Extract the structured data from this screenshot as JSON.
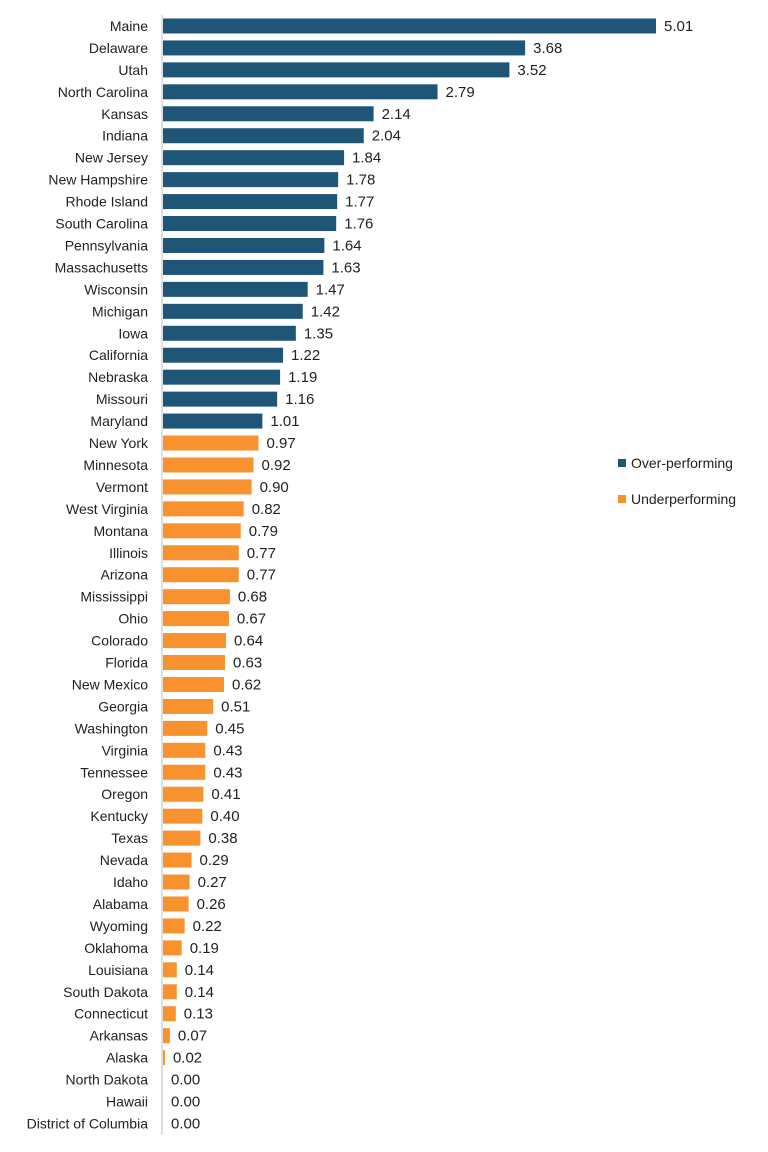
{
  "chart_data": {
    "type": "bar",
    "orientation": "horizontal",
    "title": "",
    "xlabel": "",
    "ylabel": "",
    "xlim": [
      0,
      5.4
    ],
    "grid": false,
    "legend_position": "right-middle",
    "categories": [
      "Maine",
      "Delaware",
      "Utah",
      "North Carolina",
      "Kansas",
      "Indiana",
      "New Jersey",
      "New Hampshire",
      "Rhode Island",
      "South Carolina",
      "Pennsylvania",
      "Massachusetts",
      "Wisconsin",
      "Michigan",
      "Iowa",
      "California",
      "Nebraska",
      "Missouri",
      "Maryland",
      "New York",
      "Minnesota",
      "Vermont",
      "West Virginia",
      "Montana",
      "Illinois",
      "Arizona",
      "Mississippi",
      "Ohio",
      "Colorado",
      "Florida",
      "New Mexico",
      "Georgia",
      "Washington",
      "Virginia",
      "Tennessee",
      "Oregon",
      "Kentucky",
      "Texas",
      "Nevada",
      "Idaho",
      "Alabama",
      "Wyoming",
      "Oklahoma",
      "Louisiana",
      "South Dakota",
      "Connecticut",
      "Arkansas",
      "Alaska",
      "North Dakota",
      "Hawaii",
      "District of Columbia"
    ],
    "values": [
      5.01,
      3.68,
      3.52,
      2.79,
      2.14,
      2.04,
      1.84,
      1.78,
      1.77,
      1.76,
      1.64,
      1.63,
      1.47,
      1.42,
      1.35,
      1.22,
      1.19,
      1.16,
      1.01,
      0.97,
      0.92,
      0.9,
      0.82,
      0.79,
      0.77,
      0.77,
      0.68,
      0.67,
      0.64,
      0.63,
      0.62,
      0.51,
      0.45,
      0.43,
      0.43,
      0.41,
      0.4,
      0.38,
      0.29,
      0.27,
      0.26,
      0.22,
      0.19,
      0.14,
      0.14,
      0.13,
      0.07,
      0.02,
      0.0,
      0.0,
      0.0
    ],
    "value_labels": [
      "5.01",
      "3.68",
      "3.52",
      "2.79",
      "2.14",
      "2.04",
      "1.84",
      "1.78",
      "1.77",
      "1.76",
      "1.64",
      "1.63",
      "1.47",
      "1.42",
      "1.35",
      "1.22",
      "1.19",
      "1.16",
      "1.01",
      "0.97",
      "0.92",
      "0.90",
      "0.82",
      "0.79",
      "0.77",
      "0.77",
      "0.68",
      "0.67",
      "0.64",
      "0.63",
      "0.62",
      "0.51",
      "0.45",
      "0.43",
      "0.43",
      "0.41",
      "0.40",
      "0.38",
      "0.29",
      "0.27",
      "0.26",
      "0.22",
      "0.19",
      "0.14",
      "0.14",
      "0.13",
      "0.07",
      "0.02",
      "0.00",
      "0.00",
      "0.00"
    ],
    "groups": [
      "over",
      "over",
      "over",
      "over",
      "over",
      "over",
      "over",
      "over",
      "over",
      "over",
      "over",
      "over",
      "over",
      "over",
      "over",
      "over",
      "over",
      "over",
      "over",
      "under",
      "under",
      "under",
      "under",
      "under",
      "under",
      "under",
      "under",
      "under",
      "under",
      "under",
      "under",
      "under",
      "under",
      "under",
      "under",
      "under",
      "under",
      "under",
      "under",
      "under",
      "under",
      "under",
      "under",
      "under",
      "under",
      "under",
      "under",
      "under",
      "under",
      "under",
      "under"
    ],
    "legend": [
      {
        "key": "over",
        "label": "Over-performing",
        "color": "#1f5576"
      },
      {
        "key": "under",
        "label": "Underperforming",
        "color": "#f7922e"
      }
    ]
  }
}
